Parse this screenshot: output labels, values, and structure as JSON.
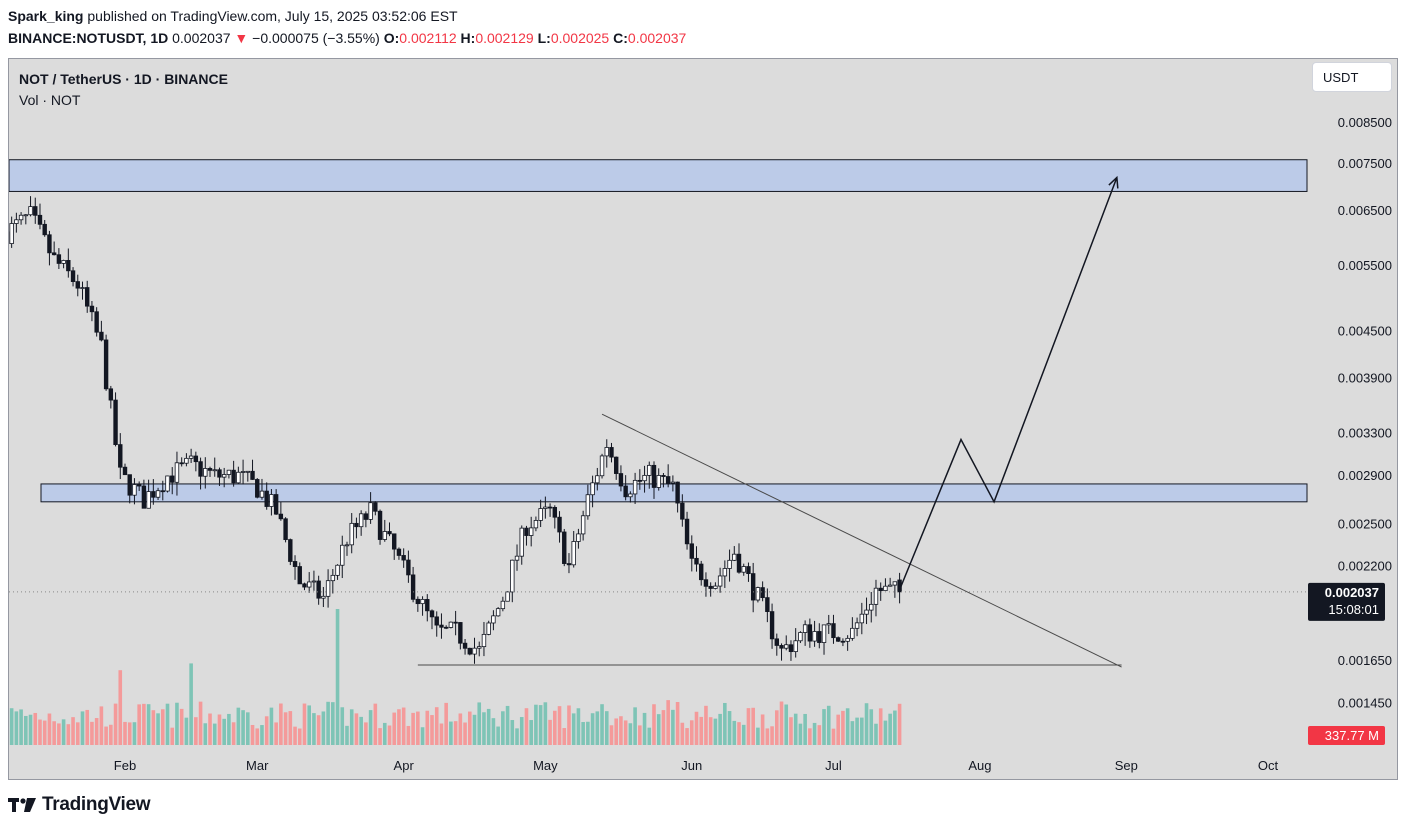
{
  "header": {
    "author": "Spark_king",
    "published_text": "published on TradingView.com, July 15, 2025 03:52:06 EST",
    "symbol": "BINANCE:NOTUSDT, 1D",
    "last": "0.002037",
    "change": "−0.000075 (−3.55%)",
    "open_label": "O:",
    "open": "0.002112",
    "high_label": "H:",
    "high": "0.002129",
    "low_label": "L:",
    "low": "0.002025",
    "close_label": "C:",
    "close": "0.002037"
  },
  "legend": {
    "title": "NOT / TetherUS · 1D · BINANCE",
    "volume": "Vol · NOT"
  },
  "unit_button": "USDT",
  "footer": {
    "logo_text": "TradingView"
  },
  "colors": {
    "up": "#22ab94",
    "down": "#f23645",
    "volume_up": "#7ec4b6",
    "volume_down": "#f49a9a",
    "zone_fill": "#bccbe8",
    "background": "#dcdcdc"
  },
  "chart_data": {
    "type": "candlestick",
    "title": "NOT / TetherUS · 1D · BINANCE",
    "y_scale": "log",
    "y_ticks": [
      0.0085,
      0.0075,
      0.0065,
      0.0055,
      0.0045,
      0.0039,
      0.0033,
      0.0029,
      0.0025,
      0.0022,
      0.00165,
      0.00145
    ],
    "y_tick_labels": [
      "0.008500",
      "0.007500",
      "0.006500",
      "0.005500",
      "0.004500",
      "0.003900",
      "0.003300",
      "0.002900",
      "0.002500",
      "0.002200",
      "0.001650",
      "0.001450"
    ],
    "x_ticks": [
      {
        "date": "2025-02-01",
        "label": "Feb"
      },
      {
        "date": "2025-03-01",
        "label": "Mar"
      },
      {
        "date": "2025-04-01",
        "label": "Apr"
      },
      {
        "date": "2025-05-01",
        "label": "May"
      },
      {
        "date": "2025-06-01",
        "label": "Jun"
      },
      {
        "date": "2025-07-01",
        "label": "Jul"
      },
      {
        "date": "2025-08-01",
        "label": "Aug"
      },
      {
        "date": "2025-09-01",
        "label": "Sep"
      },
      {
        "date": "2025-10-01",
        "label": "Oct"
      }
    ],
    "price_key_points": [
      [
        "2025-01-07",
        0.0061
      ],
      [
        "2025-01-12",
        0.0064
      ],
      [
        "2025-01-17",
        0.0056
      ],
      [
        "2025-01-22",
        0.0052
      ],
      [
        "2025-01-27",
        0.0043
      ],
      [
        "2025-01-31",
        0.0029
      ],
      [
        "2025-02-05",
        0.0027
      ],
      [
        "2025-02-10",
        0.0029
      ],
      [
        "2025-02-15",
        0.003
      ],
      [
        "2025-02-20",
        0.0029
      ],
      [
        "2025-02-25",
        0.0029
      ],
      [
        "2025-03-01",
        0.0028
      ],
      [
        "2025-03-05",
        0.0026
      ],
      [
        "2025-03-10",
        0.0021
      ],
      [
        "2025-03-15",
        0.002
      ],
      [
        "2025-03-20",
        0.0024
      ],
      [
        "2025-03-25",
        0.0026
      ],
      [
        "2025-03-30",
        0.0023
      ],
      [
        "2025-04-04",
        0.002
      ],
      [
        "2025-04-08",
        0.0018
      ],
      [
        "2025-04-12",
        0.0018
      ],
      [
        "2025-04-17",
        0.0017
      ],
      [
        "2025-04-22",
        0.002
      ],
      [
        "2025-04-27",
        0.0025
      ],
      [
        "2025-05-02",
        0.0026
      ],
      [
        "2025-05-06",
        0.0022
      ],
      [
        "2025-05-10",
        0.0027
      ],
      [
        "2025-05-14",
        0.0032
      ],
      [
        "2025-05-18",
        0.0028
      ],
      [
        "2025-05-23",
        0.0029
      ],
      [
        "2025-05-28",
        0.0028
      ],
      [
        "2025-06-01",
        0.0022
      ],
      [
        "2025-06-06",
        0.0021
      ],
      [
        "2025-06-10",
        0.0023
      ],
      [
        "2025-06-15",
        0.002
      ],
      [
        "2025-06-20",
        0.0017
      ],
      [
        "2025-06-25",
        0.0018
      ],
      [
        "2025-06-30",
        0.0018
      ],
      [
        "2025-07-05",
        0.0018
      ],
      [
        "2025-07-10",
        0.00205
      ],
      [
        "2025-07-15",
        0.002037
      ]
    ],
    "volume": {
      "label": "337.77 M",
      "peaks": [
        [
          "2025-01-31",
          0.55
        ],
        [
          "2025-02-15",
          0.6
        ],
        [
          "2025-03-18",
          1.0
        ],
        [
          "2025-05-13",
          0.3
        ],
        [
          "2025-05-27",
          0.33
        ]
      ]
    },
    "current_price": {
      "label": "0.002037",
      "countdown": "15:08:01"
    },
    "annotations": [
      {
        "type": "zone",
        "from": 0.0069,
        "to": 0.0076
      },
      {
        "type": "zone",
        "from": 0.00268,
        "to": 0.00283
      },
      {
        "type": "trendline",
        "points": [
          [
            "2025-05-13",
            0.0035
          ],
          [
            "2025-08-31",
            0.00162
          ]
        ]
      },
      {
        "type": "support_line",
        "points": [
          [
            "2025-04-04",
            0.00163
          ],
          [
            "2025-08-31",
            0.00163
          ]
        ]
      },
      {
        "type": "projection_arrow",
        "points": [
          [
            "2025-07-15",
            0.00205
          ],
          [
            "2025-07-28",
            0.00324
          ],
          [
            "2025-08-04",
            0.00268
          ],
          [
            "2025-08-30",
            0.0072
          ]
        ]
      }
    ]
  }
}
